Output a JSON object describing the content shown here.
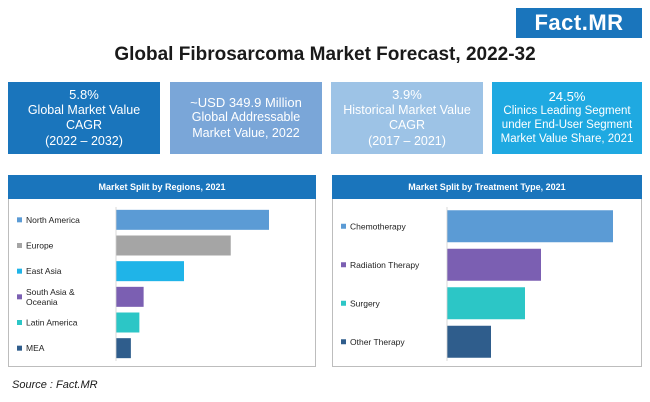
{
  "brand": {
    "logo_text": "Fact.MR"
  },
  "title": "Global Fibrosarcoma Market Forecast, 2022-32",
  "kpis": [
    {
      "value": "5.8%",
      "label": "Global Market Value CAGR",
      "sub": "(2022 – 2032)",
      "color": "#1a75bc"
    },
    {
      "value": "~USD 349.9 Million",
      "label": "Global Addressable Market Value, 2022",
      "sub": "",
      "color": "#7aa6d8"
    },
    {
      "value": "3.9%",
      "label": "Historical Market Value CAGR",
      "sub": "(2017 – 2021)",
      "color": "#9dc3e6"
    },
    {
      "value": "24.5%",
      "label": "Clinics Leading Segment under End-User Segment Market Value Share, 2021",
      "sub": "",
      "color": "#1fa9e1"
    }
  ],
  "chart_data": [
    {
      "type": "bar",
      "orientation": "horizontal",
      "title": "Market Split by Regions, 2021",
      "categories": [
        "North America",
        "Europe",
        "East Asia",
        "South Asia & Oceania",
        "Latin America",
        "MEA"
      ],
      "values": [
        36,
        27,
        16,
        6.5,
        5.5,
        3.5
      ],
      "colors": [
        "#5b9bd5",
        "#a5a5a5",
        "#1fb4e8",
        "#7b5fb2",
        "#2cc6c6",
        "#2f5d8c"
      ],
      "xlim": [
        0,
        40
      ]
    },
    {
      "type": "bar",
      "orientation": "horizontal",
      "title": "Market Split by Treatment Type, 2021",
      "categories": [
        "Chemotherapy",
        "Radiation Therapy",
        "Surgery",
        "Other Therapy"
      ],
      "values": [
        41.5,
        23.5,
        19.5,
        11
      ],
      "colors": [
        "#5b9bd5",
        "#7b5fb2",
        "#2cc6c6",
        "#2f5d8c"
      ],
      "xlim": [
        0,
        45
      ]
    }
  ],
  "source": "Source : Fact.MR"
}
